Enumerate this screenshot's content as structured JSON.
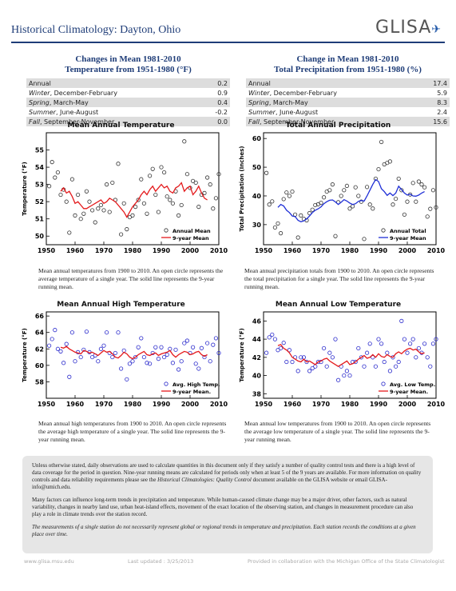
{
  "header": {
    "title": "Historical Climatology:  Dayton, Ohio",
    "logo": "GLISA"
  },
  "temp_table": {
    "title1": "Changes in Mean 1981-2010",
    "title2": "Temperature from 1951-1980 (°F)",
    "rows": [
      {
        "season": "Annual",
        "months": "",
        "value": "0.2"
      },
      {
        "season": "Winter",
        "months": ", December-February",
        "value": "0.9"
      },
      {
        "season": "Spring",
        "months": ", March-May",
        "value": "0.4"
      },
      {
        "season": "Summer",
        "months": ", June-August",
        "value": "-0.2"
      },
      {
        "season": "Fall",
        "months": ", September-November",
        "value": "0.0"
      }
    ]
  },
  "precip_table": {
    "title1": "Change in Mean 1981-2010",
    "title2": "Total Precipitation from 1951-1980 (%)",
    "rows": [
      {
        "season": "Annual",
        "months": "",
        "value": "17.4"
      },
      {
        "season": "Winter",
        "months": ", December-February",
        "value": "5.9"
      },
      {
        "season": "Spring",
        "months": ", March-May",
        "value": "8.3"
      },
      {
        "season": "Summer",
        "months": ", June-August",
        "value": "2.4"
      },
      {
        "season": "Fall",
        "months": ", September-November",
        "value": "15.6"
      }
    ]
  },
  "chart_data": [
    {
      "type": "scatter",
      "title": "Mean Annual Temperature",
      "ylabel": "Temperature (°F)",
      "xlim": [
        1950,
        2010
      ],
      "ylim": [
        49.5,
        56
      ],
      "xticks": [
        1950,
        1960,
        1970,
        1980,
        1990,
        2000,
        2010
      ],
      "yticks": [
        50,
        51,
        52,
        53,
        54,
        55
      ],
      "legend": [
        "Annual Mean",
        "9-year Mean"
      ],
      "legend_position": "bottom-right",
      "point_color": "#333333",
      "line_color": "#e41a1c",
      "x": [
        1951,
        1952,
        1953,
        1954,
        1955,
        1956,
        1957,
        1958,
        1959,
        1960,
        1961,
        1962,
        1963,
        1964,
        1965,
        1966,
        1967,
        1968,
        1969,
        1970,
        1971,
        1972,
        1973,
        1974,
        1975,
        1976,
        1977,
        1978,
        1979,
        1980,
        1981,
        1982,
        1983,
        1984,
        1985,
        1986,
        1987,
        1988,
        1989,
        1990,
        1991,
        1992,
        1993,
        1994,
        1995,
        1996,
        1997,
        1998,
        1999,
        2000,
        2001,
        2002,
        2003,
        2004,
        2005,
        2006,
        2007,
        2008,
        2009,
        2010
      ],
      "y": [
        52.9,
        54.3,
        53.4,
        53.7,
        52.4,
        52.7,
        52.0,
        50.2,
        53.3,
        51.2,
        52.4,
        51.0,
        51.3,
        52.6,
        52.0,
        51.5,
        50.8,
        51.6,
        51.8,
        51.5,
        53.0,
        51.4,
        53.1,
        52.1,
        54.2,
        50.1,
        51.9,
        50.4,
        51.1,
        51.2,
        51.7,
        52.1,
        53.3,
        51.9,
        51.3,
        53.5,
        53.9,
        52.4,
        51.4,
        54.0,
        53.7,
        52.3,
        52.1,
        51.9,
        52.6,
        51.2,
        51.8,
        55.5,
        53.6,
        52.8,
        53.2,
        53.1,
        51.7,
        52.4,
        52.5,
        53.4,
        53.0,
        51.6,
        52.2,
        53.6
      ],
      "running_x": [
        1955,
        1956,
        1957,
        1958,
        1959,
        1960,
        1961,
        1962,
        1963,
        1964,
        1965,
        1966,
        1967,
        1968,
        1969,
        1970,
        1971,
        1972,
        1973,
        1974,
        1975,
        1976,
        1977,
        1978,
        1979,
        1980,
        1981,
        1982,
        1983,
        1984,
        1985,
        1986,
        1987,
        1988,
        1989,
        1990,
        1991,
        1992,
        1993,
        1994,
        1995,
        1996,
        1997,
        1998,
        1999,
        2000,
        2001,
        2002,
        2003,
        2004,
        2005,
        2006
      ],
      "running_y": [
        52.6,
        52.8,
        52.5,
        52.6,
        52.3,
        51.9,
        52.0,
        51.8,
        51.6,
        51.6,
        51.7,
        51.8,
        51.9,
        52.0,
        52.1,
        51.9,
        52.0,
        52.2,
        52.1,
        52.0,
        51.8,
        51.6,
        51.4,
        51.1,
        51.4,
        51.7,
        51.9,
        52.1,
        52.4,
        52.6,
        52.4,
        52.7,
        52.9,
        52.6,
        52.8,
        53.0,
        52.8,
        52.9,
        52.6,
        52.5,
        52.8,
        52.9,
        53.1,
        52.6,
        52.8,
        52.9,
        52.4,
        52.6,
        52.9,
        52.5,
        52.2,
        52.1
      ]
    },
    {
      "type": "scatter",
      "title": "Total Annual Precipitation",
      "ylabel": "Total Precipitation (Inches)",
      "xlim": [
        1950,
        2010
      ],
      "ylim": [
        23,
        62
      ],
      "xticks": [
        1950,
        1960,
        1970,
        1980,
        1990,
        2000,
        2010
      ],
      "yticks": [
        30,
        40,
        50,
        60
      ],
      "legend": [
        "Annual Total",
        "9-year Mean"
      ],
      "legend_position": "bottom-right",
      "point_color": "#333333",
      "line_color": "#1f2fd6",
      "x": [
        1951,
        1952,
        1953,
        1954,
        1955,
        1956,
        1957,
        1958,
        1959,
        1960,
        1961,
        1962,
        1963,
        1964,
        1965,
        1966,
        1967,
        1968,
        1969,
        1970,
        1971,
        1972,
        1973,
        1974,
        1975,
        1976,
        1977,
        1978,
        1979,
        1980,
        1981,
        1982,
        1983,
        1984,
        1985,
        1986,
        1987,
        1988,
        1989,
        1990,
        1991,
        1992,
        1993,
        1994,
        1995,
        1996,
        1997,
        1998,
        1999,
        2000,
        2001,
        2002,
        2003,
        2004,
        2005,
        2006,
        2007,
        2008,
        2009,
        2010
      ],
      "y": [
        48.0,
        37.0,
        38.1,
        29.0,
        30.4,
        27.0,
        38.9,
        41.2,
        40.0,
        41.5,
        33.5,
        25.5,
        33.2,
        32.0,
        31.5,
        34.0,
        35.2,
        36.8,
        37.1,
        37.6,
        39.5,
        41.5,
        42.0,
        44.0,
        26.0,
        37.8,
        40.0,
        42.0,
        43.5,
        35.6,
        36.4,
        43.0,
        40.0,
        38.0,
        25.0,
        43.1,
        37.0,
        35.6,
        46.0,
        49.3,
        58.8,
        51.0,
        51.5,
        52.0,
        37.0,
        39.0,
        46.0,
        42.0,
        33.5,
        38.0,
        40.5,
        44.5,
        38.0,
        45.0,
        44.0,
        43.0,
        32.8,
        35.5,
        42.0,
        36.0
      ],
      "running_x": [
        1955,
        1956,
        1957,
        1958,
        1959,
        1960,
        1961,
        1962,
        1963,
        1964,
        1965,
        1966,
        1967,
        1968,
        1969,
        1970,
        1971,
        1972,
        1973,
        1974,
        1975,
        1976,
        1977,
        1978,
        1979,
        1980,
        1981,
        1982,
        1983,
        1984,
        1985,
        1986,
        1987,
        1988,
        1989,
        1990,
        1991,
        1992,
        1993,
        1994,
        1995,
        1996,
        1997,
        1998,
        1999,
        2000,
        2001,
        2002,
        2003,
        2004,
        2005,
        2006
      ],
      "running_y": [
        36.0,
        37.0,
        36.5,
        35.0,
        34.2,
        33.0,
        32.8,
        31.5,
        31.0,
        31.3,
        32.0,
        33.0,
        34.2,
        35.0,
        35.5,
        36.2,
        37.3,
        38.0,
        38.5,
        38.6,
        37.9,
        37.0,
        37.8,
        38.7,
        38.2,
        37.5,
        37.0,
        37.3,
        38.1,
        38.4,
        38.2,
        40.0,
        42.0,
        44.0,
        45.7,
        45.0,
        42.5,
        41.5,
        40.2,
        41.0,
        40.1,
        41.0,
        43.4,
        42.2,
        41.0,
        40.3,
        40.6,
        40.0,
        39.9,
        40.3,
        41.0,
        41.5
      ]
    },
    {
      "type": "scatter",
      "title": "Mean Annual High Temperature",
      "ylabel": "Temperature (°F)",
      "xlim": [
        1950,
        2010
      ],
      "ylim": [
        56,
        66.5
      ],
      "xticks": [
        1950,
        1960,
        1970,
        1980,
        1990,
        2000,
        2010
      ],
      "yticks": [
        58,
        60,
        62,
        64,
        66
      ],
      "legend": [
        "Avg. High Temp.",
        "9-year Mean."
      ],
      "legend_position": "bottom-right",
      "point_color": "#2a2acc",
      "line_color": "#e41a1c",
      "x": [
        1951,
        1952,
        1953,
        1954,
        1955,
        1956,
        1957,
        1958,
        1959,
        1960,
        1961,
        1962,
        1963,
        1964,
        1965,
        1966,
        1967,
        1968,
        1969,
        1970,
        1971,
        1972,
        1973,
        1974,
        1975,
        1976,
        1977,
        1978,
        1979,
        1980,
        1981,
        1982,
        1983,
        1984,
        1985,
        1986,
        1987,
        1988,
        1989,
        1990,
        1991,
        1992,
        1993,
        1994,
        1995,
        1996,
        1997,
        1998,
        1999,
        2000,
        2001,
        2002,
        2003,
        2004,
        2005,
        2006,
        2007,
        2008,
        2009,
        2010
      ],
      "y": [
        62.4,
        63.2,
        64.3,
        62.0,
        61.7,
        60.3,
        62.6,
        58.6,
        64.0,
        60.5,
        61.6,
        61.0,
        61.9,
        64.1,
        61.6,
        61.0,
        61.2,
        60.5,
        62.0,
        62.4,
        64.0,
        61.5,
        61.0,
        61.5,
        64.0,
        59.6,
        61.8,
        58.3,
        60.2,
        60.5,
        61.0,
        62.2,
        63.3,
        61.0,
        60.3,
        60.2,
        61.5,
        62.2,
        60.8,
        62.2,
        61.0,
        61.3,
        62.0,
        60.3,
        61.9,
        59.5,
        60.5,
        62.7,
        63.0,
        61.5,
        62.2,
        60.2,
        59.6,
        62.1,
        61.0,
        62.7,
        60.5,
        62.5,
        63.3,
        61.5
      ],
      "running_x": [
        1955,
        1956,
        1957,
        1958,
        1959,
        1960,
        1961,
        1962,
        1963,
        1964,
        1965,
        1966,
        1967,
        1968,
        1969,
        1970,
        1971,
        1972,
        1973,
        1974,
        1975,
        1976,
        1977,
        1978,
        1979,
        1980,
        1981,
        1982,
        1983,
        1984,
        1985,
        1986,
        1987,
        1988,
        1989,
        1990,
        1991,
        1992,
        1993,
        1994,
        1995,
        1996,
        1997,
        1998,
        1999,
        2000,
        2001,
        2002,
        2003,
        2004,
        2005,
        2006
      ],
      "running_y": [
        62.2,
        62.1,
        62.3,
        62.0,
        61.8,
        61.6,
        61.5,
        61.4,
        61.8,
        61.7,
        61.5,
        61.6,
        61.4,
        61.2,
        61.5,
        61.8,
        61.6,
        61.7,
        61.4,
        61.0,
        60.9,
        61.2,
        61.6,
        61.4,
        61.0,
        60.8,
        61.0,
        61.3,
        61.5,
        61.7,
        61.3,
        61.2,
        61.4,
        61.5,
        61.2,
        61.4,
        61.5,
        61.6,
        61.8,
        61.3,
        61.0,
        61.3,
        61.5,
        61.7,
        61.6,
        61.3,
        61.4,
        61.6,
        61.7,
        61.3,
        61.1,
        61.3
      ]
    },
    {
      "type": "scatter",
      "title": "Mean Annual Low Temperature",
      "ylabel": "Temperature (°F)",
      "xlim": [
        1950,
        2010
      ],
      "ylim": [
        37.5,
        47
      ],
      "xticks": [
        1950,
        1960,
        1970,
        1980,
        1990,
        2000,
        2010
      ],
      "yticks": [
        38,
        40,
        42,
        44,
        46
      ],
      "legend": [
        "Avg. Low Temp.",
        "9-year Mean."
      ],
      "legend_position": "bottom-right",
      "point_color": "#2a2acc",
      "line_color": "#e41a1c",
      "x": [
        1951,
        1952,
        1953,
        1954,
        1955,
        1956,
        1957,
        1958,
        1959,
        1960,
        1961,
        1962,
        1963,
        1964,
        1965,
        1966,
        1967,
        1968,
        1969,
        1970,
        1971,
        1972,
        1973,
        1974,
        1975,
        1976,
        1977,
        1978,
        1979,
        1980,
        1981,
        1982,
        1983,
        1984,
        1985,
        1986,
        1987,
        1988,
        1989,
        1990,
        1991,
        1992,
        1993,
        1994,
        1995,
        1996,
        1997,
        1998,
        1999,
        2000,
        2001,
        2002,
        2003,
        2004,
        2005,
        2006,
        2007,
        2008,
        2009,
        2010
      ],
      "y": [
        42.5,
        44.2,
        44.5,
        44.0,
        42.8,
        43.0,
        43.6,
        41.5,
        42.8,
        41.5,
        42.0,
        40.5,
        42.0,
        42.0,
        41.5,
        40.5,
        40.8,
        41.0,
        41.5,
        41.5,
        43.0,
        41.0,
        42.5,
        42.0,
        44.0,
        39.5,
        41.0,
        40.0,
        40.5,
        40.0,
        41.5,
        41.5,
        43.0,
        42.0,
        41.0,
        42.5,
        43.5,
        42.0,
        41.0,
        44.0,
        43.5,
        41.5,
        42.5,
        40.5,
        42.0,
        41.0,
        41.5,
        46.0,
        44.0,
        42.5,
        43.5,
        44.0,
        42.0,
        43.0,
        42.5,
        43.5,
        42.0,
        41.0,
        43.5,
        44.0
      ],
      "running_x": [
        1955,
        1956,
        1957,
        1958,
        1959,
        1960,
        1961,
        1962,
        1963,
        1964,
        1965,
        1966,
        1967,
        1968,
        1969,
        1970,
        1971,
        1972,
        1973,
        1974,
        1975,
        1976,
        1977,
        1978,
        1979,
        1980,
        1981,
        1982,
        1983,
        1984,
        1985,
        1986,
        1987,
        1988,
        1989,
        1990,
        1991,
        1992,
        1993,
        1994,
        1995,
        1996,
        1997,
        1998,
        1999,
        2000,
        2001,
        2002,
        2003,
        2004,
        2005,
        2006
      ],
      "running_y": [
        43.3,
        43.4,
        43.0,
        42.8,
        42.5,
        42.0,
        41.8,
        41.6,
        41.5,
        41.8,
        41.5,
        41.6,
        41.4,
        41.2,
        41.5,
        41.6,
        41.8,
        41.9,
        41.6,
        41.4,
        41.2,
        41.0,
        41.2,
        41.4,
        41.6,
        41.2,
        41.3,
        41.5,
        41.8,
        42.0,
        42.2,
        41.9,
        42.0,
        42.3,
        42.0,
        42.4,
        42.1,
        42.0,
        42.3,
        42.1,
        42.0,
        42.4,
        42.6,
        42.4,
        42.7,
        42.9,
        43.0,
        42.8,
        42.9,
        42.6,
        42.4,
        42.5
      ]
    }
  ],
  "captions": [
    "Mean annual temperatures from 1900 to 2010. An open circle represents the average temperature of a single year. The solid line represents the 9-year running mean.",
    "Mean annual precipitation totals from 1900 to 2010. An open circle represents the total precipitation for a single year. The solid line represents the 9-year running mean.",
    "Mean annual high temperatures from 1900 to 2010. An open circle represents the average high temperature of a single year. The solid line represents the 9-year running mean.",
    "Mean annual low temperatures from 1900 to 2010. An open circle represents the average low temperature of a single year. The solid line represents the 9-year running mean."
  ],
  "note": {
    "p1_a": "Unless otherwise stated, daily observations are used to calculate quantities in this document only if they satisfy a number of quality control tests and there is a high level of data coverage for the period in question. Nine-year running means are calculated for periods only when at least 5 of the 9 years are available. For more information on quality controls and data reliability requirements please see the ",
    "p1_italic": "Historical Climatologies: Quality Control",
    "p1_b": " document available on the GLISA website or email GLISA-info@umich.edu.",
    "p2": "Many factors can influence long-term trends in precipitation and temperature. While human-caused climate change may be a major driver, other factors, such as natural variability, changes in nearby land use, urban heat-island effects, movement of the exact location of the observing station, and changes in measurement procedure can also play a role in climate trends over the station record.",
    "p3": "The measurements of a single station do not necessarily represent global or regional trends in temperature and precipitation. Each station records the conditions at a given place over time."
  },
  "footer": {
    "website": "www.glisa.msu.edu",
    "updated": "Last updated : 3/25/2013",
    "collab": "Provided in collaboration with the Michigan Office of the State Climatologist"
  }
}
